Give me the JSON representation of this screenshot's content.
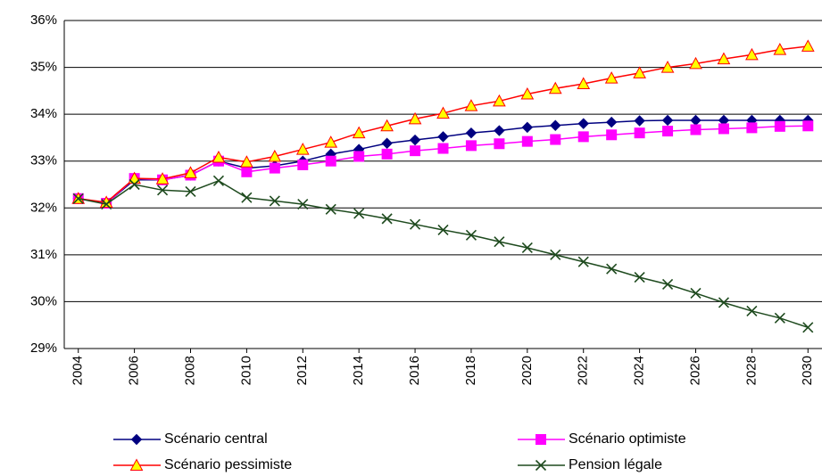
{
  "chart_data": {
    "type": "line",
    "x": [
      2004,
      2005,
      2006,
      2007,
      2008,
      2009,
      2010,
      2011,
      2012,
      2013,
      2014,
      2015,
      2016,
      2017,
      2018,
      2019,
      2020,
      2021,
      2022,
      2023,
      2024,
      2025,
      2026,
      2027,
      2028,
      2029,
      2030
    ],
    "xlim": [
      2003.5,
      2030.5
    ],
    "xticks": [
      2004,
      2006,
      2008,
      2010,
      2012,
      2014,
      2016,
      2018,
      2020,
      2022,
      2024,
      2026,
      2028,
      2030
    ],
    "ylim": [
      29,
      36
    ],
    "yticks": [
      {
        "value": 29,
        "label": "29%"
      },
      {
        "value": 30,
        "label": "30%"
      },
      {
        "value": 31,
        "label": "31%"
      },
      {
        "value": 32,
        "label": "32%"
      },
      {
        "value": 33,
        "label": "33%"
      },
      {
        "value": 34,
        "label": "34%"
      },
      {
        "value": 35,
        "label": "35%"
      },
      {
        "value": 36,
        "label": "36%"
      }
    ],
    "grid": true,
    "legend": "bottom",
    "series": [
      {
        "name": "Scénario central",
        "color": "#000080",
        "marker": "diamond",
        "marker_fill": "#000080",
        "values": [
          32.2,
          32.1,
          32.6,
          32.6,
          32.7,
          33.0,
          32.85,
          32.9,
          33.0,
          33.15,
          33.25,
          33.38,
          33.45,
          33.52,
          33.6,
          33.65,
          33.72,
          33.76,
          33.8,
          33.83,
          33.86,
          33.87,
          33.87,
          33.87,
          33.87,
          33.87,
          33.87
        ]
      },
      {
        "name": "Scénario optimiste",
        "color": "#FF00FF",
        "marker": "square",
        "marker_fill": "#FF00FF",
        "values": [
          32.2,
          32.1,
          32.63,
          32.6,
          32.7,
          33.0,
          32.77,
          32.85,
          32.92,
          33.0,
          33.1,
          33.15,
          33.22,
          33.27,
          33.33,
          33.37,
          33.42,
          33.46,
          33.52,
          33.56,
          33.6,
          33.64,
          33.67,
          33.69,
          33.71,
          33.74,
          33.75
        ]
      },
      {
        "name": "Scénario pessimiste",
        "color": "#FF0000",
        "marker": "triangle",
        "marker_fill": "#FFFF00",
        "values": [
          32.2,
          32.12,
          32.63,
          32.62,
          32.75,
          33.08,
          32.98,
          33.1,
          33.25,
          33.4,
          33.6,
          33.75,
          33.9,
          34.02,
          34.18,
          34.28,
          34.43,
          34.55,
          34.65,
          34.77,
          34.88,
          35.0,
          35.08,
          35.18,
          35.27,
          35.38,
          35.45
        ]
      },
      {
        "name": "Pension légale",
        "color": "#1E4A1E",
        "marker": "x",
        "marker_fill": "none",
        "values": [
          32.2,
          32.08,
          32.5,
          32.38,
          32.35,
          32.58,
          32.22,
          32.15,
          32.08,
          31.97,
          31.88,
          31.77,
          31.65,
          31.53,
          31.42,
          31.28,
          31.15,
          31.0,
          30.85,
          30.7,
          30.52,
          30.37,
          30.18,
          29.98,
          29.8,
          29.65,
          29.45
        ]
      }
    ]
  }
}
